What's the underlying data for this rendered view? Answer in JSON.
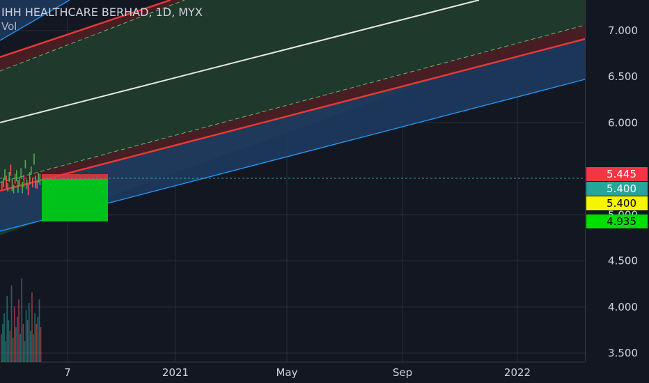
{
  "header": {
    "title": "IHH HEALTHCARE BERHAD, 1D, MYX",
    "indicator": "Vol"
  },
  "colors": {
    "background": "#131722",
    "grid": "#2a2e39",
    "channel_blue_fill": "#1e3a5f",
    "channel_green_fill": "#1f3a2c",
    "channel_red_band": "#4a1c24",
    "line_red": "#e53935",
    "line_blue": "#2196f3",
    "line_white": "#e8e8e8",
    "line_green_dashed": "#66bb6a",
    "box_green": "#00c21a"
  },
  "chart_data": {
    "type": "line",
    "ylim": [
      3.45,
      7.35
    ],
    "yticks": [
      "3.500",
      "4.000",
      "4.500",
      "5.000",
      "6.000",
      "6.500",
      "7.000"
    ],
    "xticks": [
      "7",
      "2021",
      "May",
      "Sep",
      "2022"
    ],
    "price_tags": [
      {
        "label": "5.445",
        "value": 5.445,
        "bg": "#f23645",
        "fg": "#ffffff"
      },
      {
        "label": "5.400",
        "value": 5.4,
        "bg": "#26a69a",
        "fg": "#ffffff"
      },
      {
        "label": "5.400",
        "value": 5.4,
        "bg": "#f5f500",
        "fg": "#000000"
      },
      {
        "label": "4.935",
        "value": 4.935,
        "bg": "#00e000",
        "fg": "#000000"
      }
    ],
    "last_price": 5.4
  }
}
